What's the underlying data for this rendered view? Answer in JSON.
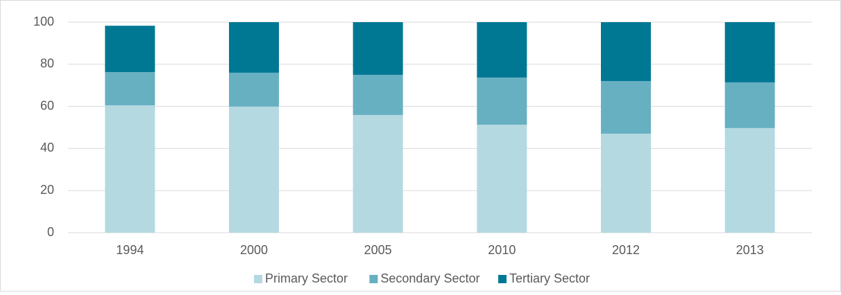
{
  "chart_data": {
    "type": "bar",
    "stacked": true,
    "grid": true,
    "legend": "bottom",
    "categories": [
      "1994",
      "2000",
      "2005",
      "2010",
      "2012",
      "2013"
    ],
    "series": [
      {
        "name": "Primary Sector",
        "color": "#b4d9e1",
        "values": [
          60.5,
          59.9,
          55.9,
          51.3,
          47,
          49.7
        ]
      },
      {
        "name": "Secondary Sector",
        "color": "#67b0c2",
        "values": [
          15.8,
          16.1,
          19.1,
          22.4,
          25,
          21.7
        ]
      },
      {
        "name": "Tertiary Sector",
        "color": "#007894",
        "values": [
          22,
          24,
          25,
          26.3,
          28,
          28.6
        ]
      }
    ],
    "ylim": [
      0,
      100
    ],
    "yticks": [
      0,
      20,
      40,
      60,
      80,
      100
    ]
  }
}
